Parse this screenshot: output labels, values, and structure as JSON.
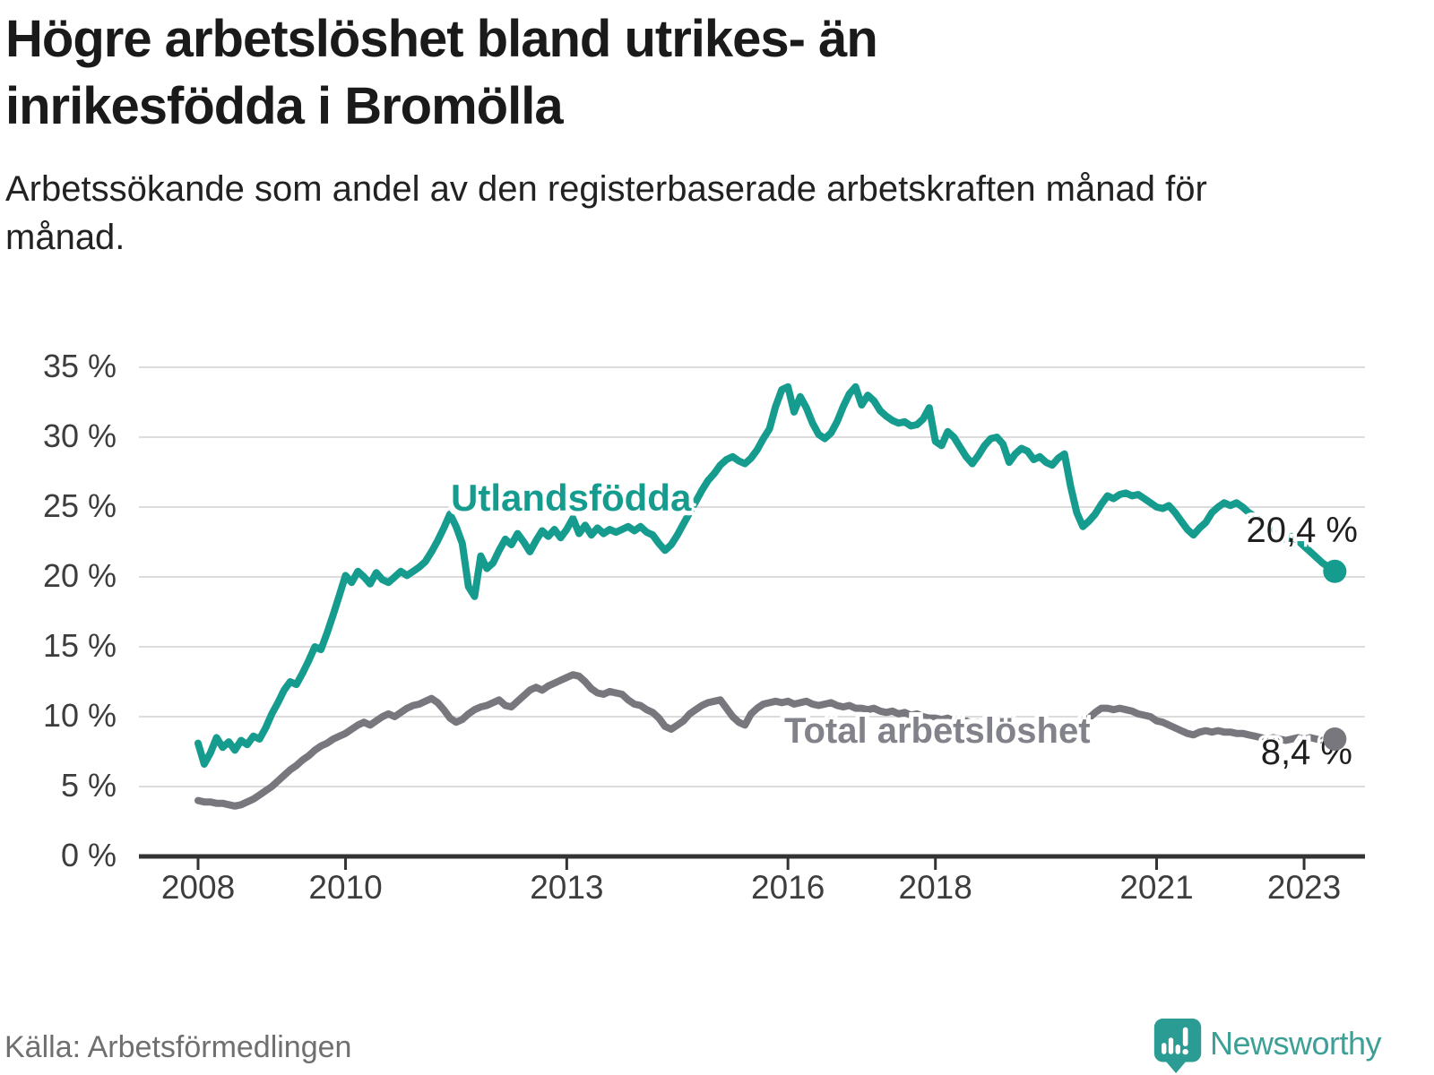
{
  "header": {
    "title": "Högre arbetslöshet bland utrikes- än inrikesfödda i Bromölla",
    "subtitle": "Arbetssökande som andel av den registerbaserade arbetskraften månad för månad."
  },
  "footer": {
    "source": "Källa: Arbetsförmedlingen",
    "logo_text": "Newsworthy",
    "logo_icon": "speech-bubble-bar-chart-exclamation"
  },
  "colors": {
    "teal": "#169c8e",
    "gray": "#77777d",
    "grid": "#dcdcdc",
    "axis": "#333333",
    "tick_text": "#3d3d3d",
    "value_label": "#1f1f1f",
    "logo_teal": "#2b9c93"
  },
  "chart_data": {
    "type": "line",
    "frequency": "monthly",
    "x_start": "2008-01",
    "x_end": "2023-06",
    "grid": true,
    "ylim": [
      0,
      36.5
    ],
    "y_ticks": [
      0,
      5,
      10,
      15,
      20,
      25,
      30,
      35
    ],
    "y_tick_labels": [
      "0 %",
      "5 %",
      "10 %",
      "15 %",
      "20 %",
      "25 %",
      "30 %",
      "35 %"
    ],
    "x_tick_years": [
      2008,
      2010,
      2013,
      2016,
      2018,
      2021,
      2023
    ],
    "x_tick_labels": [
      "2008",
      "2010",
      "2013",
      "2016",
      "2018",
      "2021",
      "2023"
    ],
    "series": [
      {
        "name": "Utlandsfödda",
        "color": "#169c8e",
        "end_value": 20.4,
        "end_label": "20,4 %",
        "values": [
          8.1,
          6.6,
          7.4,
          8.5,
          7.8,
          8.2,
          7.6,
          8.3,
          8.0,
          8.6,
          8.4,
          9.2,
          10.2,
          11.0,
          11.9,
          12.5,
          12.3,
          13.1,
          14.0,
          15.0,
          14.8,
          16.0,
          17.3,
          18.7,
          20.1,
          19.6,
          20.4,
          20.0,
          19.5,
          20.3,
          19.8,
          19.6,
          20.0,
          20.4,
          20.1,
          20.4,
          20.7,
          21.1,
          21.8,
          22.6,
          23.5,
          24.5,
          23.6,
          22.4,
          19.3,
          18.6,
          21.5,
          20.6,
          21.0,
          21.9,
          22.7,
          22.3,
          23.1,
          22.5,
          21.8,
          22.6,
          23.3,
          22.9,
          23.4,
          22.8,
          23.4,
          24.2,
          23.1,
          23.7,
          23.0,
          23.5,
          23.1,
          23.4,
          23.2,
          23.4,
          23.6,
          23.3,
          23.6,
          23.2,
          23.0,
          22.4,
          21.9,
          22.3,
          23.0,
          23.8,
          24.6,
          25.4,
          26.2,
          26.9,
          27.4,
          28.0,
          28.4,
          28.6,
          28.3,
          28.1,
          28.5,
          29.1,
          29.9,
          30.6,
          32.2,
          33.4,
          33.6,
          31.8,
          32.9,
          32.1,
          31.0,
          30.2,
          29.9,
          30.3,
          31.1,
          32.2,
          33.1,
          33.6,
          32.3,
          33.0,
          32.6,
          31.9,
          31.5,
          31.2,
          31.0,
          31.1,
          30.8,
          30.9,
          31.3,
          32.1,
          29.7,
          29.4,
          30.4,
          30.0,
          29.3,
          28.6,
          28.1,
          28.7,
          29.4,
          29.9,
          30.0,
          29.5,
          28.2,
          28.8,
          29.2,
          29.0,
          28.4,
          28.6,
          28.2,
          28.0,
          28.5,
          28.8,
          26.5,
          24.6,
          23.6,
          24.0,
          24.5,
          25.2,
          25.8,
          25.6,
          25.9,
          26.0,
          25.8,
          25.9,
          25.6,
          25.3,
          25.0,
          24.9,
          25.1,
          24.6,
          24.0,
          23.4,
          23.0,
          23.5,
          23.9,
          24.6,
          25.0,
          25.3,
          25.1,
          25.3,
          25.0,
          24.6,
          24.3,
          24.1,
          23.7,
          23.1,
          22.9,
          22.7,
          22.9,
          22.6,
          22.2,
          21.8,
          21.4,
          21.0,
          20.7,
          20.4
        ]
      },
      {
        "name": "Total arbetslöshet",
        "color": "#77777d",
        "end_value": 8.4,
        "end_label": "8,4 %",
        "values": [
          4.0,
          3.9,
          3.9,
          3.8,
          3.8,
          3.7,
          3.6,
          3.7,
          3.9,
          4.1,
          4.4,
          4.7,
          5.0,
          5.4,
          5.8,
          6.2,
          6.5,
          6.9,
          7.2,
          7.6,
          7.9,
          8.1,
          8.4,
          8.6,
          8.8,
          9.1,
          9.4,
          9.6,
          9.4,
          9.7,
          10.0,
          10.2,
          10.0,
          10.3,
          10.6,
          10.8,
          10.9,
          11.1,
          11.3,
          11.0,
          10.5,
          9.9,
          9.6,
          9.8,
          10.2,
          10.5,
          10.7,
          10.8,
          11.0,
          11.2,
          10.8,
          10.7,
          11.1,
          11.5,
          11.9,
          12.1,
          11.9,
          12.2,
          12.4,
          12.6,
          12.8,
          13.0,
          12.9,
          12.5,
          12.0,
          11.7,
          11.6,
          11.8,
          11.7,
          11.6,
          11.2,
          10.9,
          10.8,
          10.5,
          10.3,
          9.9,
          9.3,
          9.1,
          9.4,
          9.7,
          10.2,
          10.5,
          10.8,
          11.0,
          11.1,
          11.2,
          10.6,
          10.0,
          9.6,
          9.4,
          10.2,
          10.6,
          10.9,
          11.0,
          11.1,
          11.0,
          11.1,
          10.9,
          11.0,
          11.1,
          10.9,
          10.8,
          10.9,
          11.0,
          10.8,
          10.7,
          10.8,
          10.6,
          10.6,
          10.5,
          10.6,
          10.4,
          10.3,
          10.4,
          10.2,
          10.3,
          10.1,
          10.2,
          10.0,
          9.9,
          9.9,
          9.8,
          9.9,
          9.7,
          9.6,
          9.7,
          9.5,
          9.6,
          9.4,
          9.5,
          9.3,
          9.4,
          9.4,
          9.3,
          9.4,
          9.2,
          9.3,
          9.1,
          9.2,
          9.3,
          9.2,
          9.4,
          9.3,
          9.5,
          9.7,
          9.9,
          10.3,
          10.6,
          10.6,
          10.5,
          10.6,
          10.5,
          10.4,
          10.2,
          10.1,
          10.0,
          9.7,
          9.6,
          9.4,
          9.2,
          9.0,
          8.8,
          8.7,
          8.9,
          9.0,
          8.9,
          9.0,
          8.9,
          8.9,
          8.8,
          8.8,
          8.7,
          8.6,
          8.5,
          8.4,
          8.5,
          8.4,
          8.3,
          8.4,
          8.5,
          8.4,
          8.5,
          8.4,
          8.3,
          8.3,
          8.4
        ]
      }
    ]
  }
}
